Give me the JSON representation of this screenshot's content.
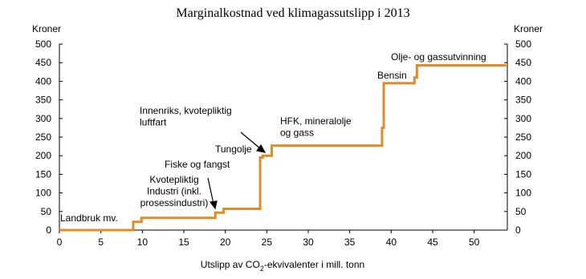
{
  "chart_data": {
    "type": "line",
    "step": true,
    "title": "Marginalkostnad ved klimagassutslipp i 2013",
    "y_label": "Kroner",
    "y2_label": "Kroner",
    "x_label": [
      "Utslipp av CO",
      "2",
      "-ekvivalenter i mill. tonn"
    ],
    "x": [
      0,
      8.9,
      8.9,
      9.9,
      9.9,
      18.8,
      18.8,
      19.8,
      19.8,
      24.2,
      24.2,
      24.5,
      24.5,
      25.6,
      25.6,
      38.9,
      38.9,
      39.1,
      39.1,
      42.8,
      42.8,
      43.1,
      43.1,
      54
    ],
    "series": [
      {
        "color": "#e08a2a",
        "values": [
          0,
          0,
          22,
          22,
          33,
          33,
          47,
          47,
          57,
          57,
          195,
          195,
          200,
          200,
          227,
          227,
          275,
          275,
          395,
          395,
          410,
          410,
          443,
          443
        ]
      }
    ],
    "xlim": [
      0,
      54
    ],
    "xticks": [
      0,
      5,
      10,
      15,
      20,
      25,
      30,
      35,
      40,
      45,
      50
    ],
    "ylim": [
      0,
      500
    ],
    "yticks": [
      0,
      50,
      100,
      150,
      200,
      250,
      300,
      350,
      400,
      450,
      500
    ],
    "y2lim": [
      0,
      500
    ],
    "y2ticks": [
      0,
      50,
      100,
      150,
      200,
      250,
      300,
      350,
      400,
      450,
      500
    ],
    "annotations": [
      [
        "Landbruk mv."
      ],
      [
        "Kvotepliktig",
        "Industri (inkl.",
        "prosessindustri)"
      ],
      [
        "Fiske og fangst"
      ],
      [
        "Innenriks, kvotepliktig",
        "luftfart"
      ],
      [
        "Tungolje"
      ],
      [
        "HFK, mineralolje",
        "og gass"
      ],
      [
        "Bensin"
      ],
      [
        "Olje- og  gassutvinning"
      ]
    ]
  }
}
